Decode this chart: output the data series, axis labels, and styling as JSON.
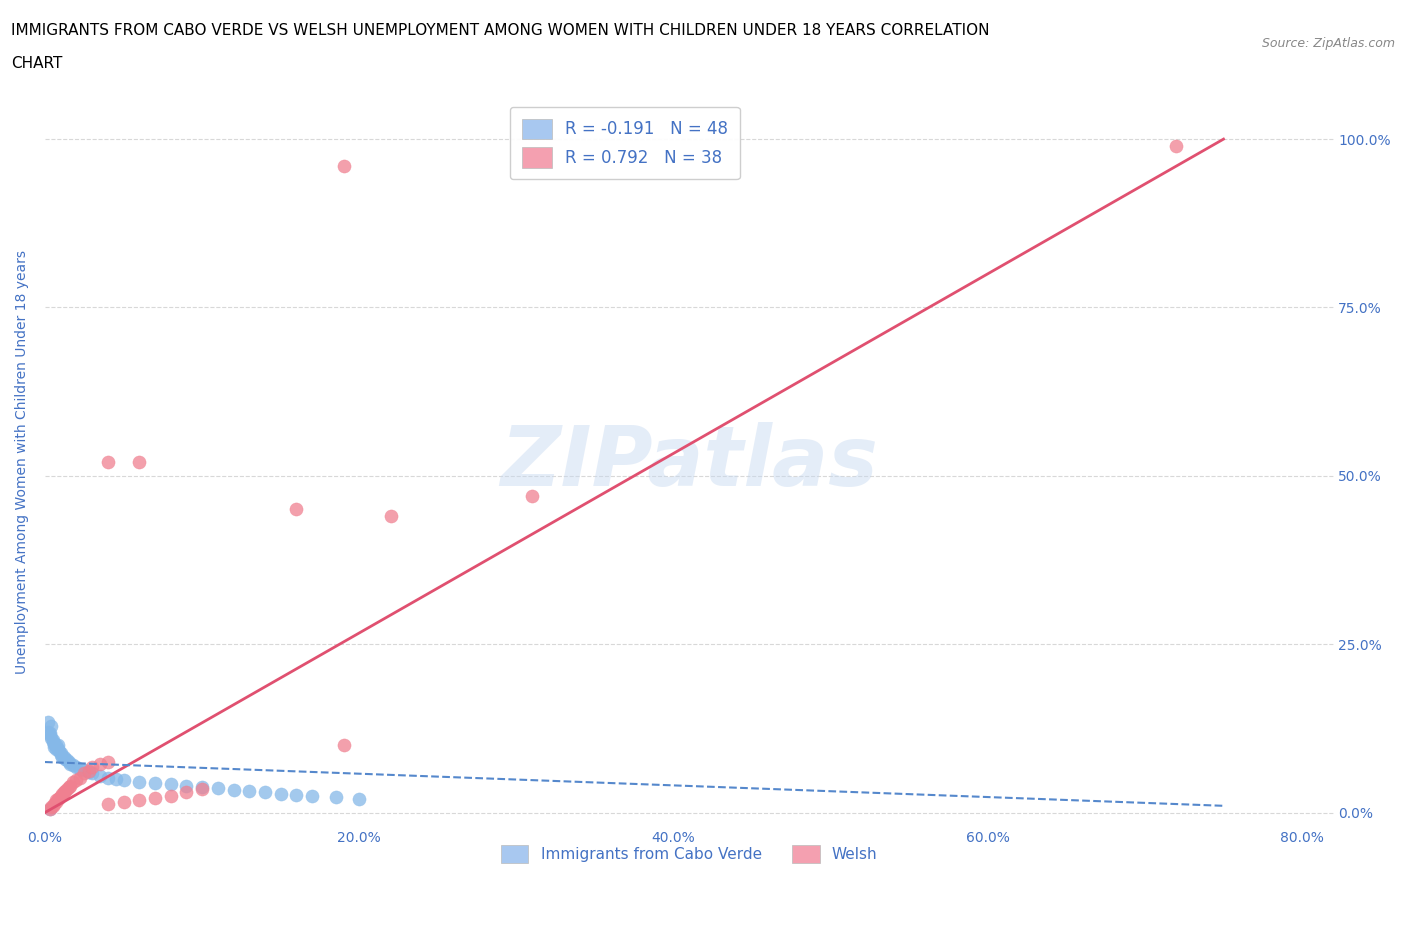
{
  "title_line1": "IMMIGRANTS FROM CABO VERDE VS WELSH UNEMPLOYMENT AMONG WOMEN WITH CHILDREN UNDER 18 YEARS CORRELATION",
  "title_line2": "CHART",
  "source": "Source: ZipAtlas.com",
  "ylabel": "Unemployment Among Women with Children Under 18 years",
  "xlim": [
    0,
    0.82
  ],
  "ylim": [
    -0.02,
    1.06
  ],
  "xticks": [
    0.0,
    0.2,
    0.4,
    0.6,
    0.8
  ],
  "yticks": [
    0.0,
    0.25,
    0.5,
    0.75,
    1.0
  ],
  "watermark": "ZIPatlas",
  "title_color": "#000000",
  "axis_label_color": "#4472c4",
  "tick_color": "#4472c4",
  "grid_color": "#d8d8d8",
  "cabo_scatter_color": "#85b8e8",
  "welsh_scatter_color": "#f08090",
  "cabo_line_color": "#5588cc",
  "welsh_line_color": "#e05070",
  "background_color": "#ffffff",
  "title_fontsize": 11,
  "axis_label_fontsize": 10,
  "tick_fontsize": 10,
  "legend_fontsize": 12,
  "source_fontsize": 9,
  "cabo_points": [
    [
      0.002,
      0.135
    ],
    [
      0.002,
      0.12
    ],
    [
      0.003,
      0.118
    ],
    [
      0.003,
      0.115
    ],
    [
      0.004,
      0.128
    ],
    [
      0.004,
      0.11
    ],
    [
      0.005,
      0.105
    ],
    [
      0.005,
      0.108
    ],
    [
      0.006,
      0.102
    ],
    [
      0.006,
      0.098
    ],
    [
      0.007,
      0.1
    ],
    [
      0.007,
      0.095
    ],
    [
      0.008,
      0.1
    ],
    [
      0.008,
      0.095
    ],
    [
      0.009,
      0.092
    ],
    [
      0.01,
      0.088
    ],
    [
      0.01,
      0.085
    ],
    [
      0.011,
      0.082
    ],
    [
      0.012,
      0.082
    ],
    [
      0.013,
      0.08
    ],
    [
      0.014,
      0.078
    ],
    [
      0.015,
      0.075
    ],
    [
      0.016,
      0.072
    ],
    [
      0.018,
      0.07
    ],
    [
      0.02,
      0.068
    ],
    [
      0.022,
      0.065
    ],
    [
      0.025,
      0.063
    ],
    [
      0.028,
      0.06
    ],
    [
      0.03,
      0.058
    ],
    [
      0.035,
      0.055
    ],
    [
      0.04,
      0.052
    ],
    [
      0.045,
      0.05
    ],
    [
      0.05,
      0.048
    ],
    [
      0.06,
      0.046
    ],
    [
      0.07,
      0.044
    ],
    [
      0.08,
      0.042
    ],
    [
      0.09,
      0.04
    ],
    [
      0.1,
      0.038
    ],
    [
      0.11,
      0.036
    ],
    [
      0.12,
      0.034
    ],
    [
      0.13,
      0.032
    ],
    [
      0.14,
      0.03
    ],
    [
      0.15,
      0.028
    ],
    [
      0.16,
      0.026
    ],
    [
      0.17,
      0.025
    ],
    [
      0.185,
      0.023
    ],
    [
      0.2,
      0.02
    ],
    [
      0.003,
      0.005
    ]
  ],
  "welsh_points": [
    [
      0.003,
      0.005
    ],
    [
      0.004,
      0.008
    ],
    [
      0.005,
      0.01
    ],
    [
      0.006,
      0.012
    ],
    [
      0.007,
      0.015
    ],
    [
      0.007,
      0.018
    ],
    [
      0.008,
      0.02
    ],
    [
      0.009,
      0.022
    ],
    [
      0.01,
      0.025
    ],
    [
      0.011,
      0.028
    ],
    [
      0.012,
      0.03
    ],
    [
      0.013,
      0.032
    ],
    [
      0.014,
      0.035
    ],
    [
      0.015,
      0.038
    ],
    [
      0.016,
      0.04
    ],
    [
      0.018,
      0.045
    ],
    [
      0.02,
      0.048
    ],
    [
      0.022,
      0.052
    ],
    [
      0.025,
      0.058
    ],
    [
      0.028,
      0.062
    ],
    [
      0.03,
      0.068
    ],
    [
      0.035,
      0.072
    ],
    [
      0.04,
      0.075
    ],
    [
      0.04,
      0.52
    ],
    [
      0.06,
      0.52
    ],
    [
      0.16,
      0.45
    ],
    [
      0.22,
      0.44
    ],
    [
      0.31,
      0.47
    ],
    [
      0.04,
      0.012
    ],
    [
      0.05,
      0.015
    ],
    [
      0.06,
      0.018
    ],
    [
      0.07,
      0.022
    ],
    [
      0.08,
      0.025
    ],
    [
      0.09,
      0.03
    ],
    [
      0.1,
      0.035
    ],
    [
      0.72,
      0.99
    ],
    [
      0.19,
      0.96
    ],
    [
      0.19,
      0.1
    ]
  ],
  "welsh_trend_x": [
    0.0,
    0.75
  ],
  "welsh_trend_y": [
    0.0,
    1.0
  ],
  "cabo_trend_x": [
    0.0,
    0.75
  ],
  "cabo_trend_y": [
    0.075,
    0.01
  ]
}
